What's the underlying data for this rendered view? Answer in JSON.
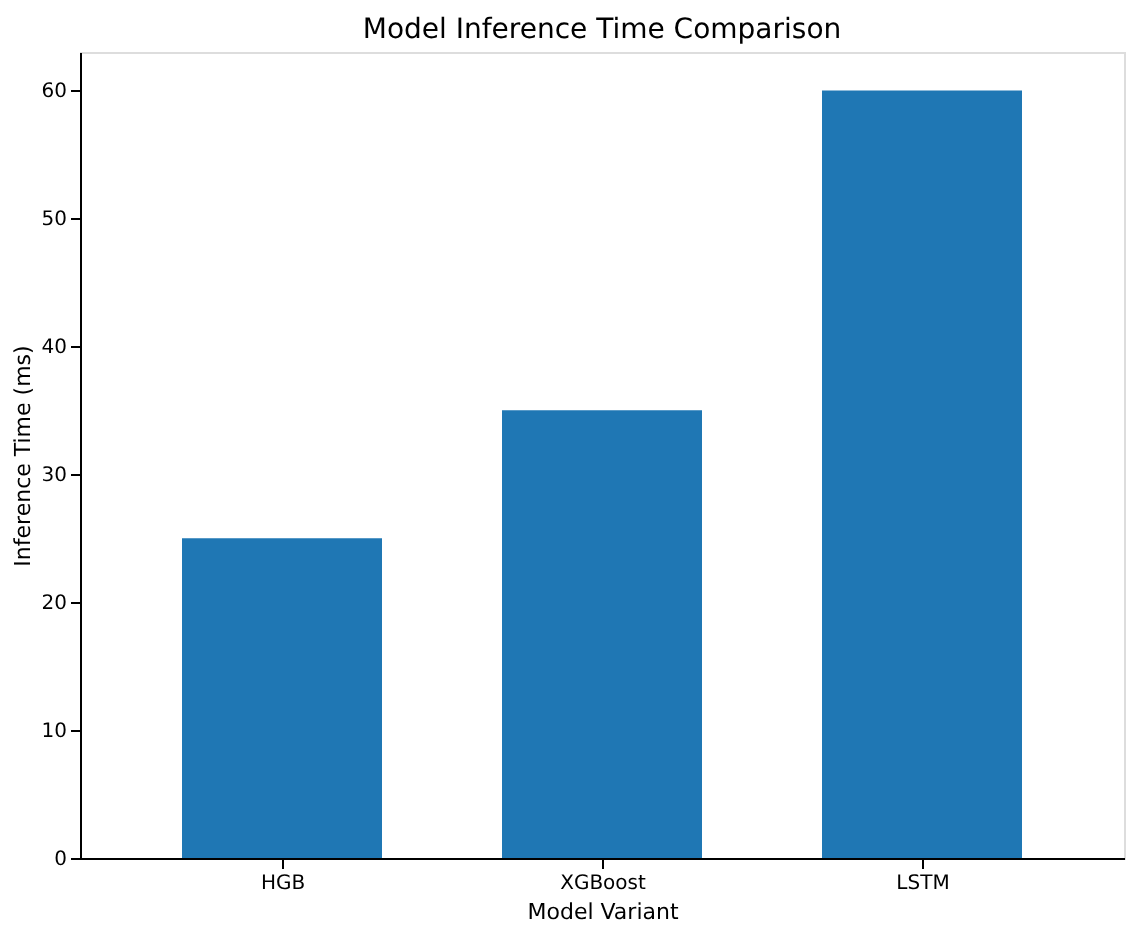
{
  "chart_data": {
    "type": "bar",
    "title": "Model Inference Time Comparison",
    "xlabel": "Model Variant",
    "ylabel": "Inference Time (ms)",
    "categories": [
      "HGB",
      "XGBoost",
      "LSTM"
    ],
    "values": [
      25,
      35,
      60
    ],
    "color": "#1f77b4",
    "ylim": [
      0,
      63
    ],
    "yticks": [
      0,
      10,
      20,
      30,
      40,
      50,
      60
    ],
    "grid": false
  }
}
